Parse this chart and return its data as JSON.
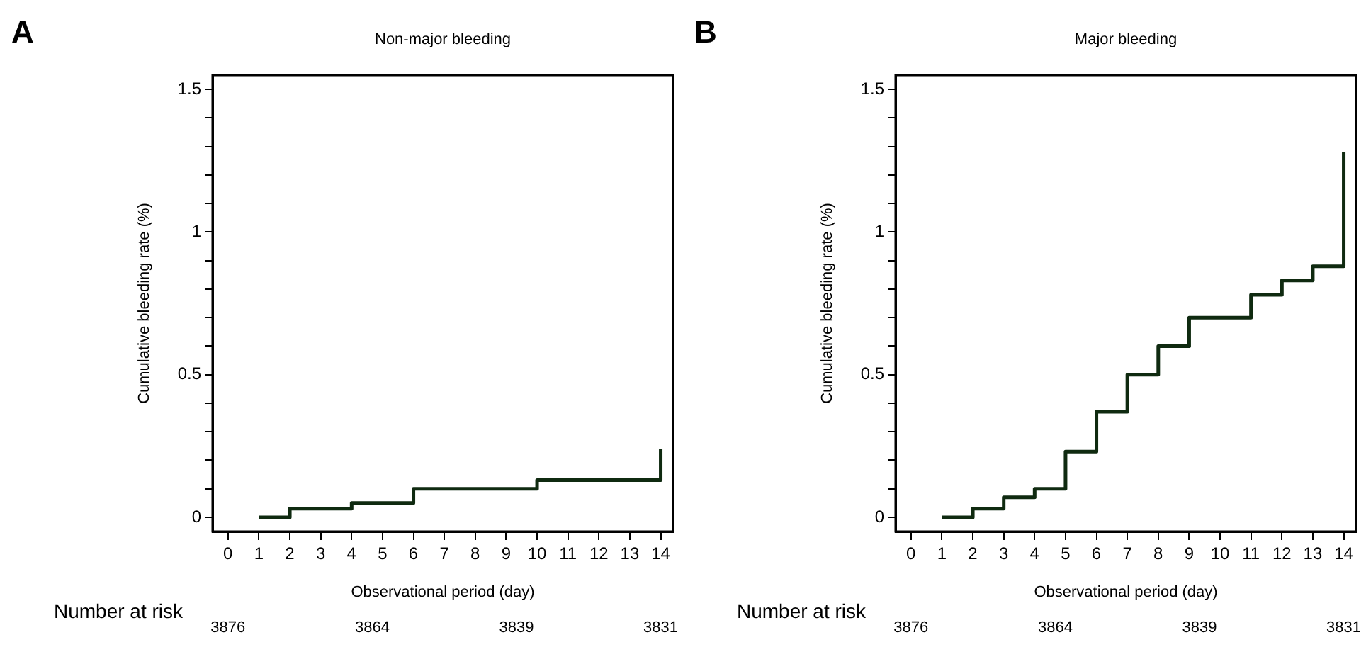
{
  "chart_data": [
    {
      "type": "step",
      "title": "Non-major bleeding",
      "xlabel": "Observational period (day)",
      "ylabel": "Cumulative bleeding rate (%)",
      "x": [
        1,
        2,
        4,
        6,
        10,
        14
      ],
      "series": [
        {
          "color": "#0f2a10",
          "values": [
            0,
            0.03,
            0.05,
            0.1,
            0.13,
            0.24
          ]
        }
      ],
      "xlim": [
        -0.5,
        14.4
      ],
      "xticks": [
        0,
        1,
        2,
        3,
        4,
        5,
        6,
        7,
        8,
        9,
        10,
        11,
        12,
        13,
        14
      ],
      "ylim": [
        -0.05,
        1.55
      ],
      "yticks": [
        0,
        {
          "value": 0.1,
          "label": null
        },
        {
          "value": 0.2,
          "label": null
        },
        {
          "value": 0.3,
          "label": null
        },
        {
          "value": 0.4,
          "label": null
        },
        0.5,
        {
          "value": 0.6,
          "label": null
        },
        {
          "value": 0.7,
          "label": null
        },
        {
          "value": 0.8,
          "label": null
        },
        {
          "value": 0.9,
          "label": null
        },
        1,
        {
          "value": 1.1,
          "label": null
        },
        {
          "value": 1.2,
          "label": null
        },
        {
          "value": 1.3,
          "label": null
        },
        {
          "value": 1.4,
          "label": null
        },
        1.5
      ],
      "grid": false,
      "legend": false,
      "marker": "none",
      "line_style": "solid",
      "annotations": [
        "A",
        "Number at risk",
        "3876",
        "3864",
        "3839",
        "3831"
      ]
    },
    {
      "type": "step",
      "title": "Major bleeding",
      "xlabel": "Observational period (day)",
      "ylabel": "Cumulative bleeding rate (%)",
      "x": [
        1,
        2,
        3,
        4,
        5,
        6,
        7,
        8,
        9,
        11,
        12,
        13,
        14
      ],
      "series": [
        {
          "color": "#0f2a10",
          "values": [
            0,
            0.03,
            0.07,
            0.1,
            0.23,
            0.37,
            0.5,
            0.6,
            0.7,
            0.78,
            0.83,
            0.88,
            1.28
          ]
        }
      ],
      "xlim": [
        -0.5,
        14.4
      ],
      "xticks": [
        0,
        1,
        2,
        3,
        4,
        5,
        6,
        7,
        8,
        9,
        10,
        11,
        12,
        13,
        14
      ],
      "ylim": [
        -0.05,
        1.55
      ],
      "yticks": [
        0,
        {
          "value": 0.1,
          "label": null
        },
        {
          "value": 0.2,
          "label": null
        },
        {
          "value": 0.3,
          "label": null
        },
        {
          "value": 0.4,
          "label": null
        },
        0.5,
        {
          "value": 0.6,
          "label": null
        },
        {
          "value": 0.7,
          "label": null
        },
        {
          "value": 0.8,
          "label": null
        },
        {
          "value": 0.9,
          "label": null
        },
        1,
        {
          "value": 1.1,
          "label": null
        },
        {
          "value": 1.2,
          "label": null
        },
        {
          "value": 1.3,
          "label": null
        },
        {
          "value": 1.4,
          "label": null
        },
        1.5
      ],
      "grid": false,
      "legend": false,
      "marker": "none",
      "line_style": "solid",
      "annotations": [
        "B",
        "Number at risk",
        "3876",
        "3864",
        "3839",
        "3831"
      ]
    }
  ]
}
